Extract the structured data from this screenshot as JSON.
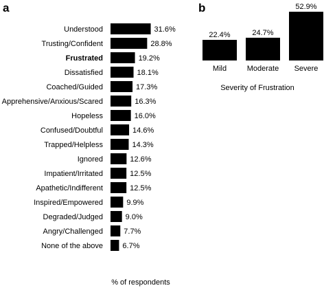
{
  "chart_data": [
    {
      "panel": "a",
      "type": "bar",
      "orientation": "horizontal",
      "categories": [
        "Understood",
        "Trusting/Confident",
        "Frustrated",
        "Dissatisfied",
        "Coached/Guided",
        "Apprehensive/Anxious/Scared",
        "Hopeless",
        "Confused/Doubtful",
        "Trapped/Helpless",
        "Ignored",
        "Impatient/Irritated",
        "Apathetic/Indifferent",
        "Inspired/Empowered",
        "Degraded/Judged",
        "Angry/Challenged",
        "None of the above"
      ],
      "values": [
        31.6,
        28.8,
        19.2,
        18.1,
        17.3,
        16.3,
        16.0,
        14.6,
        14.3,
        12.6,
        12.5,
        12.5,
        9.9,
        9.0,
        7.7,
        6.7
      ],
      "value_labels": [
        "31.6%",
        "28.8%",
        "19.2%",
        "18.1%",
        "17.3%",
        "16.3%",
        "16.0%",
        "14.6%",
        "14.3%",
        "12.6%",
        "12.5%",
        "12.5%",
        "9.9%",
        "9.0%",
        "7.7%",
        "6.7%"
      ],
      "highlighted_category": "Frustrated",
      "xlabel": "% of respondents",
      "ylabel": "",
      "xlim": [
        0,
        35
      ],
      "grid": false,
      "bar_color": "#000000"
    },
    {
      "panel": "b",
      "type": "bar",
      "orientation": "vertical",
      "categories": [
        "Mild",
        "Moderate",
        "Severe"
      ],
      "values": [
        22.4,
        24.7,
        52.9
      ],
      "value_labels": [
        "22.4%",
        "24.7%",
        "52.9%"
      ],
      "xlabel": "Severity of Frustration",
      "ylabel": "",
      "ylim": [
        0,
        55
      ],
      "grid": false,
      "bar_color": "#000000"
    }
  ]
}
